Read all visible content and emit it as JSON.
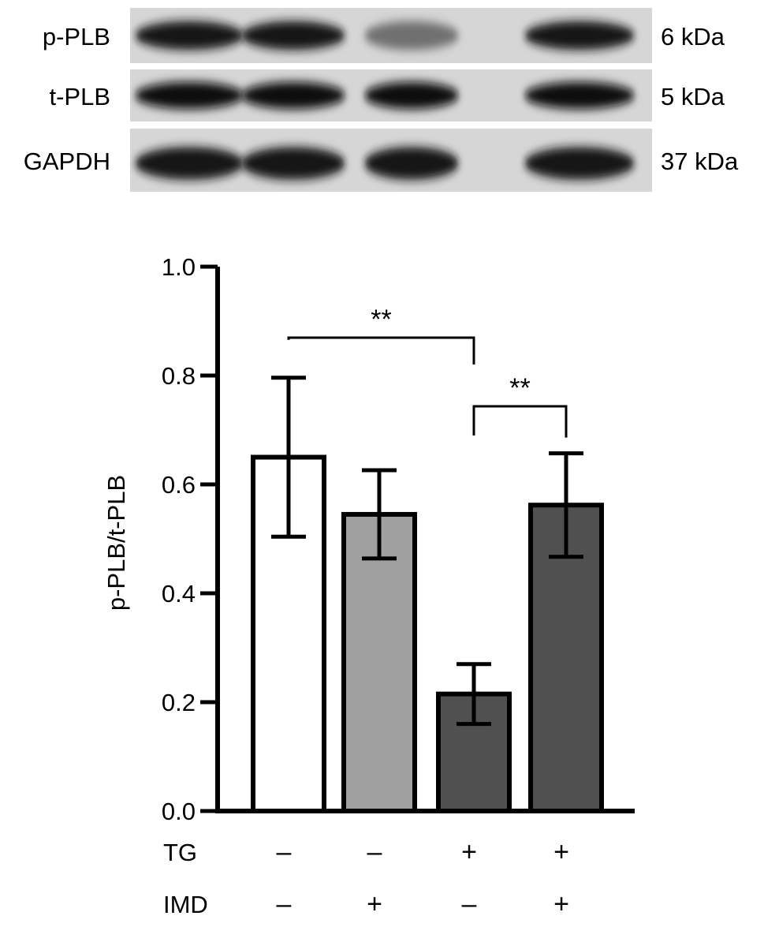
{
  "blot": {
    "lanes": 4,
    "rows": [
      {
        "label": "p-PLB",
        "size": "6 kDa",
        "intensities": [
          0.95,
          0.95,
          0.55,
          0.95
        ]
      },
      {
        "label": "t-PLB",
        "size": "5 kDa",
        "intensities": [
          1.0,
          1.0,
          1.0,
          1.0
        ]
      },
      {
        "label": "GAPDH",
        "size": "37 kDa",
        "intensities": [
          0.95,
          0.95,
          0.95,
          0.95
        ]
      }
    ]
  },
  "chart_data": {
    "type": "bar",
    "ylabel": "p-PLB/t-PLB",
    "ylim": [
      0,
      1.0
    ],
    "yticks": [
      0.0,
      0.2,
      0.4,
      0.6,
      0.8,
      1.0
    ],
    "ytick_labels": [
      "0.0",
      "0.2",
      "0.4",
      "0.6",
      "0.8",
      "1.0"
    ],
    "categories": [
      "-/-",
      "-/+",
      "+/-",
      "+/+"
    ],
    "values": [
      0.65,
      0.545,
      0.215,
      0.562
    ],
    "errors": [
      0.146,
      0.081,
      0.055,
      0.095
    ],
    "colors": [
      "#ffffff",
      "#a0a0a0",
      "#505050",
      "#505050"
    ],
    "grid": false,
    "treatments": [
      {
        "label": "TG",
        "signs": [
          "–",
          "–",
          "+",
          "+"
        ]
      },
      {
        "label": "IMD",
        "signs": [
          "–",
          "+",
          "–",
          "+"
        ]
      }
    ],
    "significance": [
      {
        "from": 0,
        "to": 2,
        "label": "**"
      },
      {
        "from": 2,
        "to": 3,
        "label": "**"
      }
    ]
  }
}
